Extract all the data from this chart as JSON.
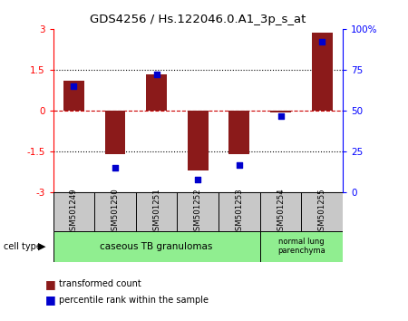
{
  "title": "GDS4256 / Hs.122046.0.A1_3p_s_at",
  "samples": [
    "GSM501249",
    "GSM501250",
    "GSM501251",
    "GSM501252",
    "GSM501253",
    "GSM501254",
    "GSM501255"
  ],
  "bar_values": [
    1.1,
    -1.6,
    1.35,
    -2.2,
    -1.6,
    -0.05,
    2.85
  ],
  "dot_values": [
    65,
    15,
    72,
    8,
    17,
    47,
    92
  ],
  "ylim_left": [
    -3,
    3
  ],
  "ylim_right": [
    0,
    100
  ],
  "yticks_left": [
    -3,
    -1.5,
    0,
    1.5,
    3
  ],
  "ytick_labels_left": [
    "-3",
    "-1.5",
    "0",
    "1.5",
    "3"
  ],
  "yticks_right": [
    0,
    25,
    50,
    75,
    100
  ],
  "ytick_labels_right": [
    "0",
    "25",
    "50",
    "75",
    "100%"
  ],
  "bar_color": "#8B1A1A",
  "dot_color": "#0000CD",
  "zero_line_color": "#CC0000",
  "grid_color": "#000000",
  "bg_color": "#FFFFFF",
  "group1_label": "caseous TB granulomas",
  "group2_label": "normal lung\nparenchyma",
  "group1_color": "#90EE90",
  "group2_color": "#90EE90",
  "cell_type_label": "cell type",
  "legend_bar_label": "transformed count",
  "legend_dot_label": "percentile rank within the sample",
  "bar_width": 0.5,
  "label_bg": "#C8C8C8",
  "n_group1": 5,
  "n_group2": 2
}
